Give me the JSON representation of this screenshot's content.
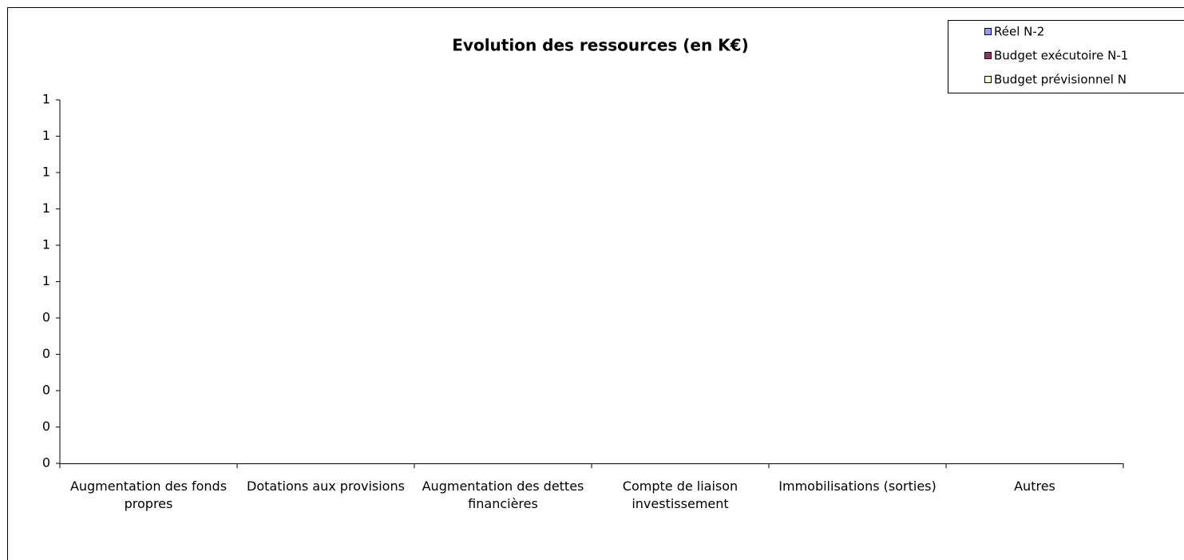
{
  "chart_data": {
    "type": "bar",
    "title": "Evolution des ressources (en K€)",
    "categories": [
      "Augmentation des fonds propres",
      "Dotations aux provisions",
      "Augmentation des dettes financières",
      "Compte de liaison investissement",
      "Immobilisations (sorties)",
      "Autres"
    ],
    "series": [
      {
        "name": "Réel N-2",
        "color": "#9999ff",
        "values": [
          0,
          0,
          0,
          0,
          0,
          0
        ]
      },
      {
        "name": "Budget exécutoire N-1",
        "color": "#993366",
        "values": [
          0,
          0,
          0,
          0,
          0,
          0
        ]
      },
      {
        "name": "Budget prévisionnel N",
        "color": "#ffffcc",
        "values": [
          0,
          0,
          0,
          0,
          0,
          0
        ]
      }
    ],
    "ylim": [
      0,
      1
    ],
    "yticks": [
      0,
      {
        "value": 0.1,
        "label": "0"
      },
      {
        "value": 0.2,
        "label": "0"
      },
      {
        "value": 0.3,
        "label": "0"
      },
      {
        "value": 0.4,
        "label": "0"
      },
      {
        "value": 0.5,
        "label": "1"
      },
      {
        "value": 0.6,
        "label": "1"
      },
      {
        "value": 0.7,
        "label": "1"
      },
      {
        "value": 0.8,
        "label": "1"
      },
      {
        "value": 0.9,
        "label": "1"
      },
      1
    ],
    "grid": false,
    "legend": "top-right"
  }
}
